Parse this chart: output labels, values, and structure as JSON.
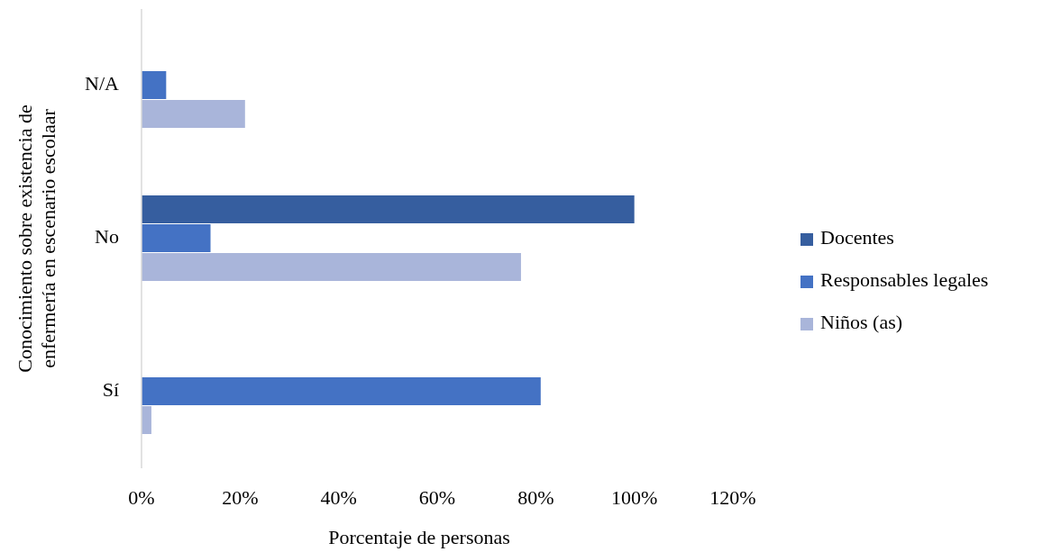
{
  "chart_data": {
    "type": "bar",
    "orientation": "horizontal",
    "categories": [
      "N/A",
      "No",
      "Sí"
    ],
    "series": [
      {
        "name": "Docentes",
        "color": "#365e9f",
        "values": [
          null,
          100,
          null
        ]
      },
      {
        "name": "Responsables legales",
        "color": "#4472c4",
        "values": [
          5,
          14,
          81
        ]
      },
      {
        "name": "Niños (as)",
        "color": "#a9b5da",
        "values": [
          21,
          77,
          2
        ]
      }
    ],
    "xlim": [
      0,
      120
    ],
    "xticks": [
      {
        "value": 0,
        "label": "0%"
      },
      {
        "value": 20,
        "label": "20%"
      },
      {
        "value": 40,
        "label": "40%"
      },
      {
        "value": 60,
        "label": "60%"
      },
      {
        "value": 80,
        "label": "80%"
      },
      {
        "value": 100,
        "label": "100%"
      },
      {
        "value": 120,
        "label": "120%"
      }
    ],
    "xlabel": "Porcentaje de personas",
    "ylabel": "Conocimiento sobre existencia de\nenfermería en escenario escolaar",
    "grid": false,
    "legend": "right"
  }
}
